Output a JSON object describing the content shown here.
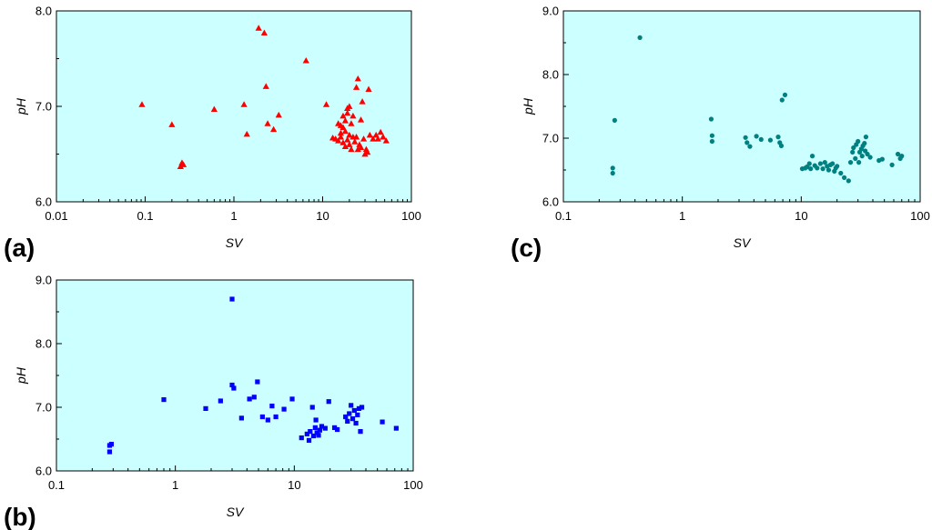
{
  "chart_data": [
    {
      "type": "scatter",
      "panel_label": "(a)",
      "xlabel": "SV",
      "ylabel": "pH",
      "xscale": "log",
      "xlim": [
        0.01,
        100
      ],
      "ylim": [
        6.0,
        8.0
      ],
      "x_ticks": [
        0.01,
        0.1,
        1,
        10,
        100
      ],
      "x_tick_labels": [
        "0.01",
        "0.1",
        "1",
        "10",
        "100"
      ],
      "y_ticks": [
        6.0,
        7.0,
        8.0
      ],
      "y_tick_labels": [
        "6.0",
        "7.0",
        "8.0"
      ],
      "marker": "triangle",
      "color": "#ff0000",
      "background": "#ccffff",
      "points": [
        [
          0.092,
          7.02
        ],
        [
          0.2,
          6.81
        ],
        [
          0.25,
          6.37
        ],
        [
          0.26,
          6.41
        ],
        [
          0.27,
          6.39
        ],
        [
          0.6,
          6.97
        ],
        [
          1.3,
          7.02
        ],
        [
          1.4,
          6.71
        ],
        [
          1.9,
          7.82
        ],
        [
          2.2,
          7.77
        ],
        [
          2.3,
          7.21
        ],
        [
          2.4,
          6.82
        ],
        [
          2.8,
          6.76
        ],
        [
          3.2,
          6.91
        ],
        [
          6.5,
          7.48
        ],
        [
          11,
          7.02
        ],
        [
          13,
          6.67
        ],
        [
          14,
          6.66
        ],
        [
          15,
          6.82
        ],
        [
          15,
          6.64
        ],
        [
          16,
          6.8
        ],
        [
          16,
          6.68
        ],
        [
          16,
          6.72
        ],
        [
          17,
          6.9
        ],
        [
          17,
          6.62
        ],
        [
          17,
          6.78
        ],
        [
          18,
          6.58
        ],
        [
          18,
          6.85
        ],
        [
          18,
          6.74
        ],
        [
          19,
          6.93
        ],
        [
          19,
          6.65
        ],
        [
          19,
          6.98
        ],
        [
          20,
          7.0
        ],
        [
          20,
          6.6
        ],
        [
          20,
          6.7
        ],
        [
          21,
          6.82
        ],
        [
          21,
          6.55
        ],
        [
          22,
          6.68
        ],
        [
          22,
          6.9
        ],
        [
          23,
          6.63
        ],
        [
          24,
          6.68
        ],
        [
          24,
          7.2
        ],
        [
          25,
          7.29
        ],
        [
          25,
          6.55
        ],
        [
          26,
          6.6
        ],
        [
          27,
          6.86
        ],
        [
          27,
          6.57
        ],
        [
          28,
          7.05
        ],
        [
          29,
          6.66
        ],
        [
          30,
          6.5
        ],
        [
          31,
          6.55
        ],
        [
          32,
          6.52
        ],
        [
          33,
          7.18
        ],
        [
          34,
          6.7
        ],
        [
          37,
          6.66
        ],
        [
          40,
          6.7
        ],
        [
          42,
          6.66
        ],
        [
          45,
          6.73
        ],
        [
          48,
          6.68
        ],
        [
          52,
          6.64
        ]
      ]
    },
    {
      "type": "scatter",
      "panel_label": "(b)",
      "xlabel": "SV",
      "ylabel": "pH",
      "xscale": "log",
      "xlim": [
        0.1,
        100
      ],
      "ylim": [
        6.0,
        9.0
      ],
      "x_ticks": [
        0.1,
        1,
        10,
        100
      ],
      "x_tick_labels": [
        "0.1",
        "1",
        "10",
        "100"
      ],
      "y_ticks": [
        6.0,
        7.0,
        8.0,
        9.0
      ],
      "y_tick_labels": [
        "6.0",
        "7.0",
        "8.0",
        "9.0"
      ],
      "marker": "square",
      "color": "#0000ff",
      "background": "#ccffff",
      "points": [
        [
          0.28,
          6.3
        ],
        [
          0.29,
          6.42
        ],
        [
          0.28,
          6.4
        ],
        [
          0.8,
          7.12
        ],
        [
          1.8,
          6.98
        ],
        [
          2.4,
          7.1
        ],
        [
          3.0,
          8.7
        ],
        [
          3.0,
          7.35
        ],
        [
          3.1,
          7.3
        ],
        [
          3.6,
          6.83
        ],
        [
          4.2,
          7.13
        ],
        [
          4.6,
          7.16
        ],
        [
          4.9,
          7.4
        ],
        [
          5.4,
          6.85
        ],
        [
          6.0,
          6.8
        ],
        [
          6.5,
          7.02
        ],
        [
          7.0,
          6.85
        ],
        [
          8.2,
          6.97
        ],
        [
          9.6,
          7.13
        ],
        [
          11.5,
          6.52
        ],
        [
          12.8,
          6.58
        ],
        [
          13.3,
          6.48
        ],
        [
          13.6,
          6.62
        ],
        [
          14.2,
          7.0
        ],
        [
          14.5,
          6.55
        ],
        [
          15.0,
          6.68
        ],
        [
          15.2,
          6.8
        ],
        [
          15.5,
          6.6
        ],
        [
          16.0,
          6.56
        ],
        [
          16.4,
          6.64
        ],
        [
          17.0,
          6.7
        ],
        [
          18.2,
          6.67
        ],
        [
          19.5,
          7.09
        ],
        [
          21.8,
          6.68
        ],
        [
          23.0,
          6.65
        ],
        [
          27.0,
          6.85
        ],
        [
          28.0,
          6.78
        ],
        [
          29.0,
          6.9
        ],
        [
          30.0,
          7.03
        ],
        [
          31.0,
          6.82
        ],
        [
          32.0,
          6.95
        ],
        [
          33.0,
          6.75
        ],
        [
          34.0,
          6.88
        ],
        [
          35.0,
          6.98
        ],
        [
          36.0,
          6.62
        ],
        [
          37.0,
          7.0
        ],
        [
          55.0,
          6.77
        ],
        [
          72.0,
          6.67
        ]
      ]
    },
    {
      "type": "scatter",
      "panel_label": "(c)",
      "xlabel": "SV",
      "ylabel": "pH",
      "xscale": "log",
      "xlim": [
        0.1,
        100
      ],
      "ylim": [
        6.0,
        9.0
      ],
      "x_ticks": [
        0.1,
        1,
        10,
        100
      ],
      "x_tick_labels": [
        "0.1",
        "1",
        "10",
        "100"
      ],
      "y_ticks": [
        6.0,
        7.0,
        8.0,
        9.0
      ],
      "y_tick_labels": [
        "6.0",
        "7.0",
        "8.0",
        "9.0"
      ],
      "marker": "circle",
      "color": "#008080",
      "background": "#ccffff",
      "points": [
        [
          0.26,
          6.53
        ],
        [
          0.26,
          6.45
        ],
        [
          0.27,
          7.28
        ],
        [
          0.44,
          8.58
        ],
        [
          1.75,
          7.3
        ],
        [
          1.78,
          7.04
        ],
        [
          1.78,
          6.95
        ],
        [
          3.4,
          7.01
        ],
        [
          3.5,
          6.93
        ],
        [
          3.7,
          6.87
        ],
        [
          4.2,
          7.03
        ],
        [
          4.6,
          6.98
        ],
        [
          5.5,
          6.97
        ],
        [
          6.4,
          7.02
        ],
        [
          6.6,
          6.93
        ],
        [
          6.8,
          6.88
        ],
        [
          6.9,
          7.6
        ],
        [
          7.3,
          7.68
        ],
        [
          10.2,
          6.52
        ],
        [
          10.8,
          6.53
        ],
        [
          11.2,
          6.55
        ],
        [
          11.7,
          6.6
        ],
        [
          12.0,
          6.52
        ],
        [
          12.4,
          6.72
        ],
        [
          13.0,
          6.57
        ],
        [
          13.6,
          6.53
        ],
        [
          14.5,
          6.6
        ],
        [
          15.2,
          6.52
        ],
        [
          15.8,
          6.62
        ],
        [
          16.5,
          6.56
        ],
        [
          17.0,
          6.5
        ],
        [
          17.6,
          6.58
        ],
        [
          18.3,
          6.6
        ],
        [
          19.0,
          6.48
        ],
        [
          19.5,
          6.53
        ],
        [
          20.0,
          6.56
        ],
        [
          21.5,
          6.45
        ],
        [
          23.0,
          6.38
        ],
        [
          25.0,
          6.33
        ],
        [
          26.0,
          6.62
        ],
        [
          27.0,
          6.78
        ],
        [
          27.5,
          6.85
        ],
        [
          28.5,
          6.68
        ],
        [
          29.0,
          6.9
        ],
        [
          30.0,
          6.95
        ],
        [
          30.5,
          6.62
        ],
        [
          31.0,
          6.78
        ],
        [
          32.0,
          6.83
        ],
        [
          32.5,
          6.72
        ],
        [
          33.0,
          6.88
        ],
        [
          34.0,
          6.92
        ],
        [
          34.5,
          6.8
        ],
        [
          35.0,
          7.02
        ],
        [
          36.0,
          6.75
        ],
        [
          38.0,
          6.7
        ],
        [
          45.0,
          6.65
        ],
        [
          48.0,
          6.67
        ],
        [
          58.0,
          6.58
        ],
        [
          65.0,
          6.75
        ],
        [
          68.0,
          6.68
        ],
        [
          70.0,
          6.72
        ]
      ]
    }
  ]
}
